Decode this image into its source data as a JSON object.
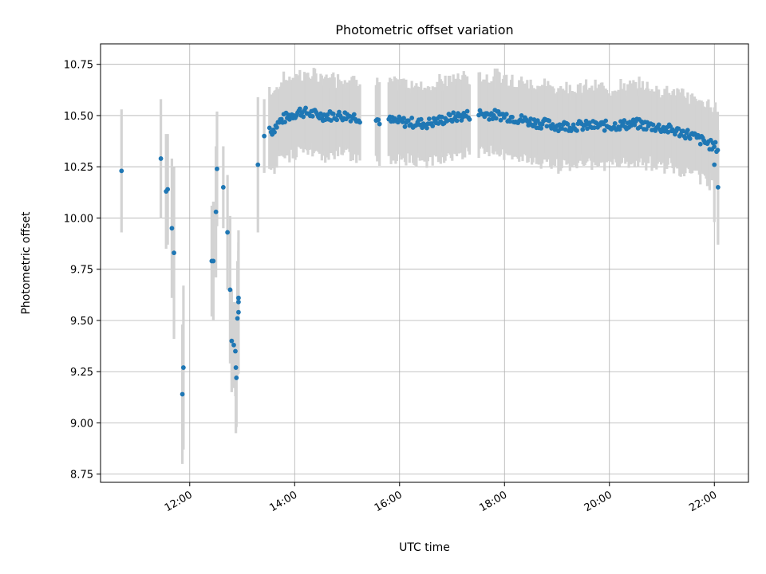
{
  "chart_data": {
    "type": "scatter",
    "title": "Photometric offset variation",
    "xlabel": "UTC time",
    "ylabel": "Photometric offset",
    "x_unit": "hour of day (UTC)",
    "xlim": [
      10.3,
      22.65
    ],
    "ylim": [
      8.71,
      10.85
    ],
    "xticks": [
      {
        "value": 12,
        "label": "12:00"
      },
      {
        "value": 14,
        "label": "14:00"
      },
      {
        "value": 16,
        "label": "16:00"
      },
      {
        "value": 18,
        "label": "18:00"
      },
      {
        "value": 20,
        "label": "20:00"
      },
      {
        "value": 22,
        "label": "22:00"
      }
    ],
    "yticks": [
      {
        "value": 8.75,
        "label": "8.75"
      },
      {
        "value": 9.0,
        "label": "9.00"
      },
      {
        "value": 9.25,
        "label": "9.25"
      },
      {
        "value": 9.5,
        "label": "9.50"
      },
      {
        "value": 9.75,
        "label": "9.75"
      },
      {
        "value": 10.0,
        "label": "10.00"
      },
      {
        "value": 10.25,
        "label": "10.25"
      },
      {
        "value": 10.5,
        "label": "10.50"
      },
      {
        "value": 10.75,
        "label": "10.75"
      }
    ],
    "grid": true,
    "marker_color": "#1f77b4",
    "errorbar_color": "#d3d3d3",
    "points": [
      {
        "x": 10.7,
        "y": 10.23,
        "err": 0.3
      },
      {
        "x": 11.45,
        "y": 10.29,
        "err": 0.29
      },
      {
        "x": 11.55,
        "y": 10.13,
        "err": 0.28
      },
      {
        "x": 11.58,
        "y": 10.14,
        "err": 0.27
      },
      {
        "x": 11.66,
        "y": 9.95,
        "err": 0.34
      },
      {
        "x": 11.7,
        "y": 9.83,
        "err": 0.42
      },
      {
        "x": 11.88,
        "y": 9.27,
        "err": 0.4
      },
      {
        "x": 11.86,
        "y": 9.14,
        "err": 0.34
      },
      {
        "x": 12.42,
        "y": 9.79,
        "err": 0.27
      },
      {
        "x": 12.45,
        "y": 9.79,
        "err": 0.29
      },
      {
        "x": 12.5,
        "y": 10.03,
        "err": 0.32
      },
      {
        "x": 12.52,
        "y": 10.24,
        "err": 0.28
      },
      {
        "x": 12.64,
        "y": 10.15,
        "err": 0.2
      },
      {
        "x": 12.72,
        "y": 9.93,
        "err": 0.28
      },
      {
        "x": 12.77,
        "y": 9.65,
        "err": 0.36
      },
      {
        "x": 12.8,
        "y": 9.4,
        "err": 0.25
      },
      {
        "x": 12.84,
        "y": 9.38,
        "err": 0.21
      },
      {
        "x": 12.87,
        "y": 9.35,
        "err": 0.22
      },
      {
        "x": 12.88,
        "y": 9.27,
        "err": 0.32
      },
      {
        "x": 12.89,
        "y": 9.22,
        "err": 0.24
      },
      {
        "x": 12.91,
        "y": 9.51,
        "err": 0.28
      },
      {
        "x": 12.93,
        "y": 9.54,
        "err": 0.3
      },
      {
        "x": 12.93,
        "y": 9.61,
        "err": 0.33
      },
      {
        "x": 12.93,
        "y": 9.59,
        "err": 0.29
      },
      {
        "x": 13.3,
        "y": 10.26,
        "err": 0.33
      },
      {
        "x": 13.42,
        "y": 10.4,
        "err": 0.18
      },
      {
        "x": 13.52,
        "y": 10.44,
        "err": 0.2
      }
    ],
    "dense_series": {
      "x_start": 13.55,
      "x_end": 22.08,
      "err": 0.18,
      "trend": [
        {
          "x": 13.55,
          "y": 10.42
        },
        {
          "x": 13.75,
          "y": 10.48
        },
        {
          "x": 14.1,
          "y": 10.52
        },
        {
          "x": 14.5,
          "y": 10.5
        },
        {
          "x": 15.0,
          "y": 10.5
        },
        {
          "x": 15.5,
          "y": 10.48
        },
        {
          "x": 16.0,
          "y": 10.47
        },
        {
          "x": 16.5,
          "y": 10.46
        },
        {
          "x": 17.0,
          "y": 10.49
        },
        {
          "x": 17.5,
          "y": 10.51
        },
        {
          "x": 18.0,
          "y": 10.5
        },
        {
          "x": 18.5,
          "y": 10.47
        },
        {
          "x": 19.0,
          "y": 10.45
        },
        {
          "x": 19.5,
          "y": 10.45
        },
        {
          "x": 20.0,
          "y": 10.45
        },
        {
          "x": 20.5,
          "y": 10.46
        },
        {
          "x": 21.0,
          "y": 10.44
        },
        {
          "x": 21.5,
          "y": 10.41
        },
        {
          "x": 21.9,
          "y": 10.36
        },
        {
          "x": 22.08,
          "y": 10.34
        }
      ],
      "final_points": [
        {
          "x": 22.0,
          "y": 10.26,
          "err": 0.28
        },
        {
          "x": 22.07,
          "y": 10.15,
          "err": 0.28
        }
      ]
    }
  }
}
